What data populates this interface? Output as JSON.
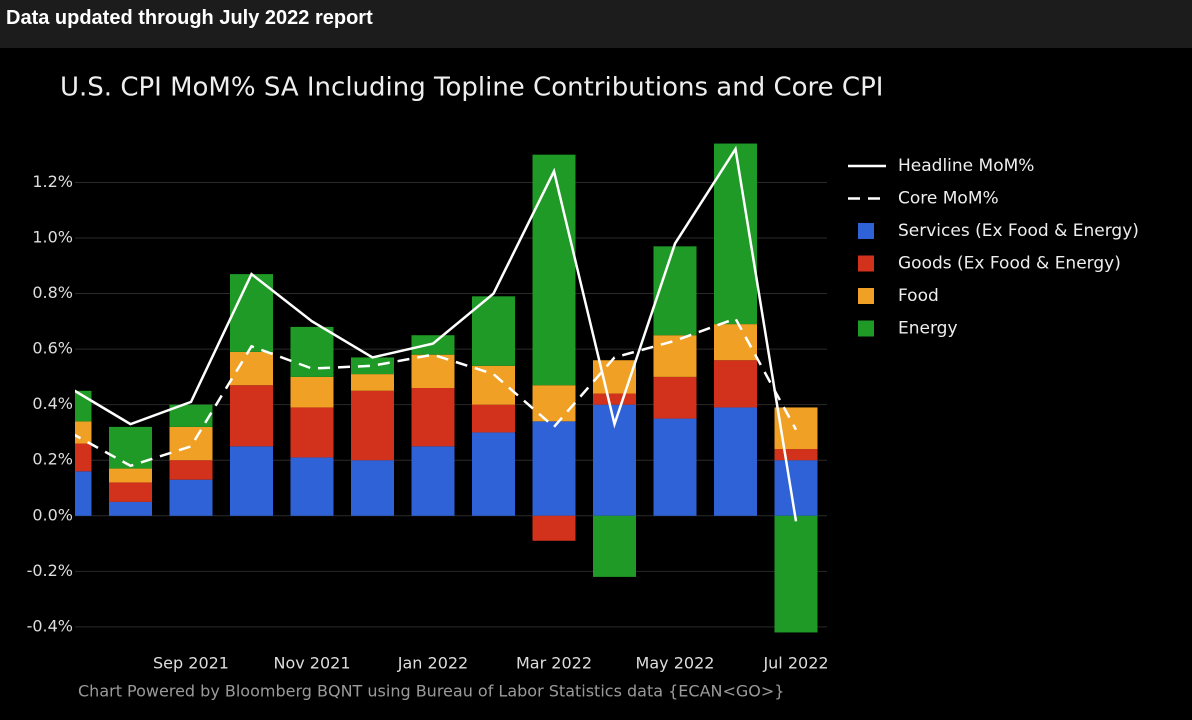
{
  "header": "Data updated through July 2022 report",
  "chart_data": {
    "type": "bar",
    "stacked": true,
    "title": "U.S. CPI MoM% SA Including Topline Contributions and Core CPI",
    "footnote": "Chart Powered by Bloomberg BQNT using Bureau of Labor Statistics data   {ECAN<GO>}",
    "categories": [
      null,
      null,
      "Sep 2021",
      null,
      "Nov 2021",
      null,
      "Jan 2022",
      null,
      "Mar 2022",
      null,
      "May 2022",
      null,
      "Jul 2022"
    ],
    "series": [
      {
        "name": "Headline MoM%",
        "type": "line",
        "color": "#ffffff",
        "dashed": false,
        "values": [
          0.46,
          0.33,
          0.41,
          0.87,
          0.7,
          0.57,
          0.62,
          0.8,
          1.24,
          0.33,
          0.98,
          1.32,
          -0.02
        ]
      },
      {
        "name": "Core MoM%",
        "type": "line",
        "color": "#ffffff",
        "dashed": true,
        "values": [
          0.3,
          0.18,
          0.25,
          0.61,
          0.53,
          0.54,
          0.58,
          0.51,
          0.32,
          0.57,
          0.63,
          0.71,
          0.31
        ]
      },
      {
        "name": "Services (Ex Food & Energy)",
        "type": "bar",
        "color": "#2f62d6",
        "values": [
          0.16,
          0.05,
          0.13,
          0.25,
          0.21,
          0.2,
          0.25,
          0.3,
          0.34,
          0.4,
          0.35,
          0.39,
          0.2
        ]
      },
      {
        "name": "Goods (Ex Food & Energy)",
        "type": "bar",
        "color": "#d2321c",
        "values": [
          0.1,
          0.07,
          0.07,
          0.22,
          0.18,
          0.25,
          0.21,
          0.1,
          -0.09,
          0.04,
          0.15,
          0.17,
          0.04
        ]
      },
      {
        "name": "Food",
        "type": "bar",
        "color": "#f0a024",
        "values": [
          0.08,
          0.05,
          0.12,
          0.12,
          0.11,
          0.06,
          0.12,
          0.14,
          0.13,
          0.12,
          0.15,
          0.13,
          0.15
        ]
      },
      {
        "name": "Energy",
        "type": "bar",
        "color": "#1f9a26",
        "values": [
          0.11,
          0.15,
          0.08,
          0.28,
          0.18,
          0.06,
          0.07,
          0.25,
          0.83,
          -0.22,
          0.32,
          0.65,
          -0.42
        ]
      }
    ],
    "ylim": [
      -0.44,
      1.36
    ],
    "yticks": [
      {
        "value": -0.4,
        "label": "-0.4%"
      },
      {
        "value": -0.2,
        "label": "-0.2%"
      },
      {
        "value": 0,
        "label": "0.0%"
      },
      {
        "value": 0.2,
        "label": "0.2%"
      },
      {
        "value": 0.4,
        "label": "0.4%"
      },
      {
        "value": 0.6,
        "label": "0.6%"
      },
      {
        "value": 0.8,
        "label": "0.8%"
      },
      {
        "value": 1.0,
        "label": "1.0%"
      },
      {
        "value": 1.2,
        "label": "1.2%"
      }
    ],
    "grid": true,
    "legend": "right"
  }
}
